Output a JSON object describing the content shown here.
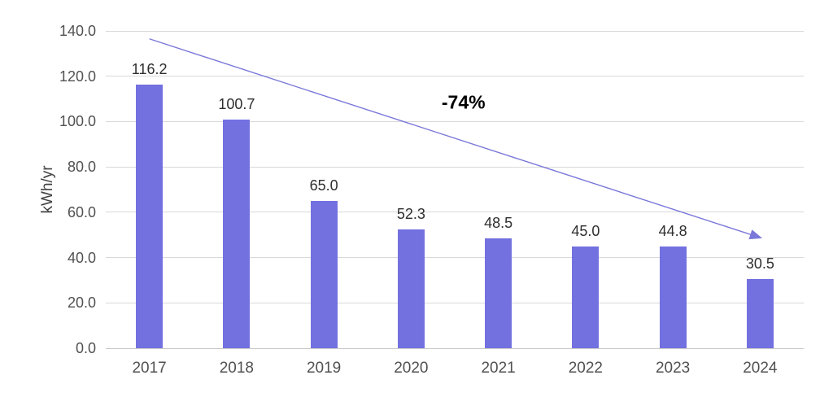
{
  "chart_data": {
    "type": "bar",
    "title": "",
    "xlabel": "",
    "ylabel": "kWh/yr",
    "categories": [
      "2017",
      "2018",
      "2019",
      "2020",
      "2021",
      "2022",
      "2023",
      "2024"
    ],
    "values": [
      116.2,
      100.7,
      65.0,
      52.3,
      48.5,
      45.0,
      44.8,
      30.5
    ],
    "value_label_decimals": 1,
    "ylim": [
      0,
      140
    ],
    "ytick_step": 20,
    "ytick_decimals": 1,
    "grid": true,
    "legend_position": "none",
    "bar_color": "#7370e0",
    "gridline_color": "#d9d9d9",
    "axis_text_color": "#515151",
    "value_text_color": "#2e2e2e",
    "annotation": {
      "label": "-74%",
      "label_color": "#000000",
      "arrow_color": "#7b78d9",
      "arrow_from": {
        "cat_index": 0,
        "value": 136.5
      },
      "arrow_to": {
        "cat_index": 7,
        "value": 48.8
      },
      "label_at": {
        "cat_index": 3.6,
        "value": 108.4
      }
    }
  }
}
